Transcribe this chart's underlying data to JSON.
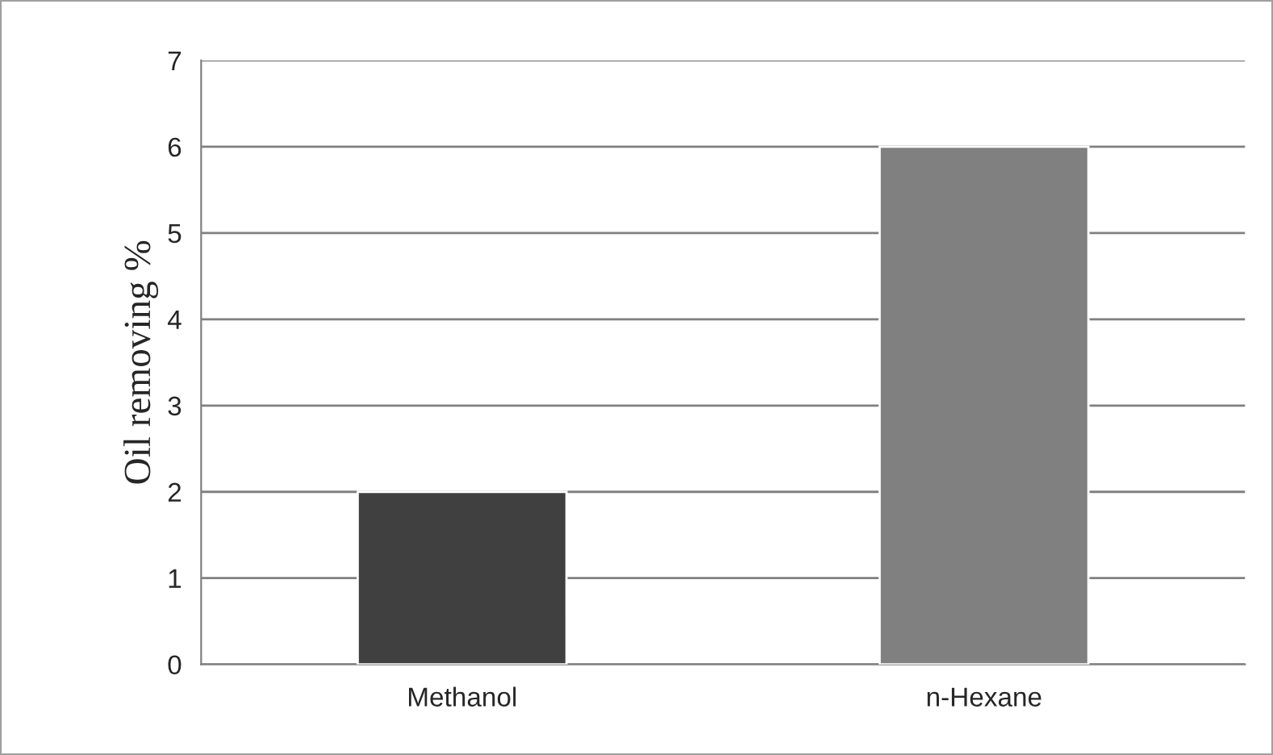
{
  "chart_data": {
    "type": "bar",
    "ylabel": "Oil removing %",
    "categories": [
      "Methanol",
      "n-Hexane"
    ],
    "values": [
      2,
      6
    ],
    "colors": [
      "#404040",
      "#808080"
    ],
    "ylim": [
      0,
      7
    ],
    "yticks": [
      0,
      1,
      2,
      3,
      4,
      5,
      6,
      7
    ],
    "grid": "y"
  }
}
